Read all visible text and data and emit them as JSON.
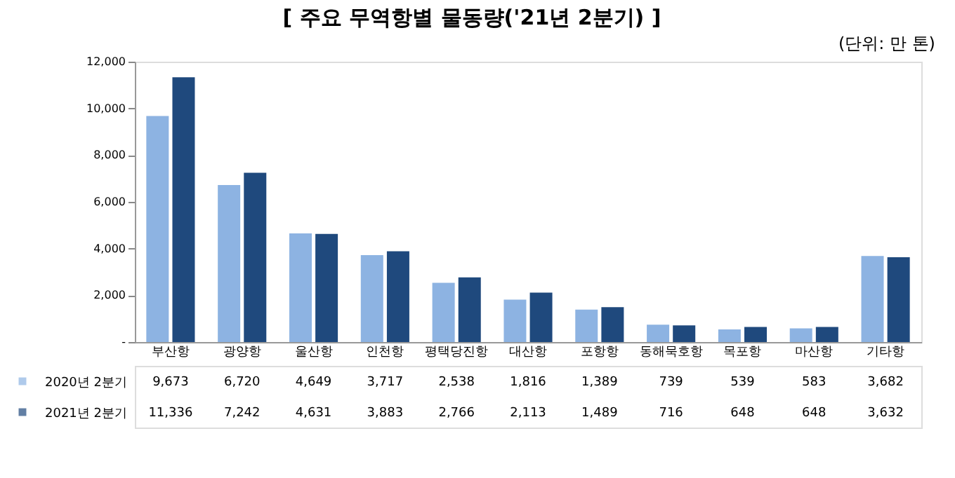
{
  "chart_data": {
    "type": "bar",
    "title": "[ 주요 무역항별 물동량('21년 2분기) ]",
    "annotations": [
      "(단위: 만 톤)"
    ],
    "categories": [
      "부산항",
      "광양항",
      "울산항",
      "인천항",
      "평택당진항",
      "대산항",
      "포항항",
      "동해묵호항",
      "목포항",
      "마산항",
      "기타항"
    ],
    "series": [
      {
        "name": "2020년 2분기",
        "color": "#8db3e2",
        "values": [
          9673,
          6720,
          4649,
          3717,
          2538,
          1816,
          1389,
          739,
          539,
          583,
          3682
        ],
        "value_labels": [
          "9,673",
          "6,720",
          "4,649",
          "3,717",
          "2,538",
          "1,816",
          "1,389",
          "739",
          "539",
          "583",
          "3,682"
        ]
      },
      {
        "name": "2021년 2분기",
        "color": "#1f497d",
        "values": [
          11336,
          7242,
          4631,
          3883,
          2766,
          2113,
          1489,
          716,
          648,
          648,
          3632
        ],
        "value_labels": [
          "11,336",
          "7,242",
          "4,631",
          "3,883",
          "2,766",
          "2,113",
          "1,489",
          "716",
          "648",
          "648",
          "3,632"
        ]
      }
    ],
    "ylim": [
      0,
      12000
    ],
    "yticks": [
      {
        "value": 0,
        "label": "-"
      },
      {
        "value": 2000,
        "label": "2,000"
      },
      {
        "value": 4000,
        "label": "4,000"
      },
      {
        "value": 6000,
        "label": "6,000"
      },
      {
        "value": 8000,
        "label": "8,000"
      },
      {
        "value": 10000,
        "label": "10,000"
      },
      {
        "value": 12000,
        "label": "12,000"
      }
    ],
    "grid": false,
    "legend": "bottom"
  }
}
